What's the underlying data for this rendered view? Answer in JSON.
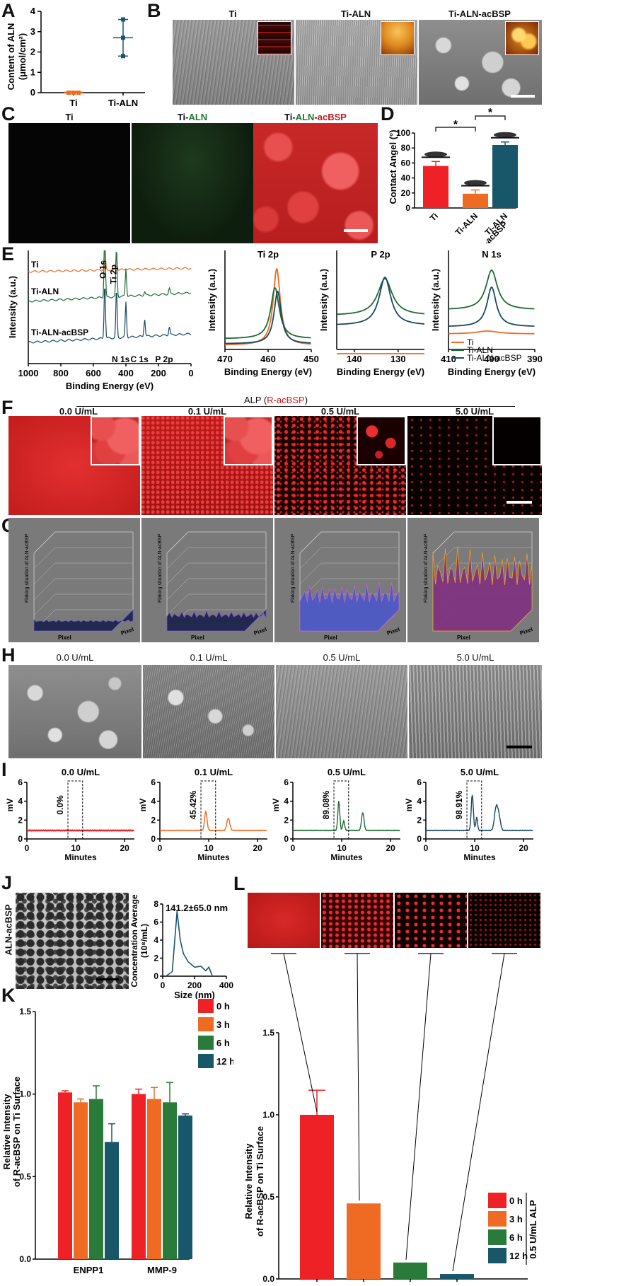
{
  "panels": {
    "A": "A",
    "B": "B",
    "C": "C",
    "D": "D",
    "E": "E",
    "F": "F",
    "G": "G",
    "H": "H",
    "I": "I",
    "J": "J",
    "K": "K",
    "L": "L"
  },
  "panelB": {
    "titles": [
      "Ti",
      "Ti-ALN",
      "Ti-ALN-acBSP"
    ]
  },
  "panelC": {
    "title1": "Ti",
    "title2_prefix": "Ti-",
    "title2_aln": "ALN",
    "title3_prefix": "Ti-",
    "title3_aln": "ALN",
    "title3_dash": "-",
    "title3_acbsp": "acBSP",
    "aln_color": "#1f7a2f",
    "acbsp_color": "#c01818"
  },
  "panelF": {
    "header_prefix": "ALP (",
    "header_red": "R-acBSP",
    "header_suffix": ")",
    "titles": [
      "0.0 U/mL",
      "0.1 U/mL",
      "0.5 U/mL",
      "5.0 U/mL"
    ]
  },
  "panelG": {
    "zlabel": "Flaking situation of ALN-acBSP",
    "xlabel": "Pixel",
    "ylabel": "Pixel"
  },
  "panelH": {
    "titles": [
      "0.0 U/mL",
      "0.1 U/mL",
      "0.5 U/mL",
      "5.0 U/mL"
    ]
  },
  "colors": {
    "orange": "#ef6a23",
    "green": "#1c6b31",
    "blue": "#17495f",
    "red": "#ee2226",
    "teal": "#18566a"
  },
  "chart_data": [
    {
      "id": "A",
      "type": "scatter",
      "ylabel": "Content of ALN\n(μmol/cm²)",
      "categories": [
        "Ti",
        "Ti-ALN"
      ],
      "yticks": [
        0,
        1,
        2,
        3,
        4
      ],
      "ylim": [
        0,
        4
      ],
      "series": [
        {
          "values": [
            0.02,
            2.7
          ],
          "points": [
            [
              0.0,
              0.0,
              0.0
            ],
            [
              3.6,
              2.7,
              1.8
            ]
          ],
          "err": [
            0.02,
            0.9
          ]
        }
      ]
    },
    {
      "id": "D",
      "type": "bar",
      "ylabel": "Contact Angel (°)",
      "categories": [
        "Ti",
        "Ti-ALN",
        "Ti-ALN\n-acBSP"
      ],
      "values": [
        56,
        19,
        84
      ],
      "errors": [
        6,
        5,
        4
      ],
      "ylim": [
        0,
        100
      ],
      "yticks": [
        0,
        20,
        40,
        60,
        80,
        100
      ],
      "colors": [
        "#ee2226",
        "#ef6a23",
        "#18566a"
      ],
      "annotations": [
        "*",
        "*"
      ]
    },
    {
      "id": "E1",
      "type": "line",
      "ylabel": "Intensity (a.u.)",
      "xlabel": "Binding Energy (eV)",
      "xticks": [
        1000,
        800,
        600,
        400,
        200,
        0
      ],
      "xlim": [
        1000,
        0
      ],
      "series": [
        {
          "name": "Ti"
        },
        {
          "name": "Ti-ALN"
        },
        {
          "name": "Ti-ALN-acBSP"
        }
      ],
      "annotations": [
        "O 1s",
        "Ti 2p",
        "N 1s",
        "C 1s",
        "P 2p"
      ]
    },
    {
      "id": "E2",
      "type": "line",
      "title": "Ti 2p",
      "ylabel": "Intensity (a.u.)",
      "xlabel": "Binding Energy (eV)",
      "xticks": [
        470,
        460,
        450
      ],
      "xlim": [
        470,
        450
      ],
      "peak": 458
    },
    {
      "id": "E3",
      "type": "line",
      "title": "P 2p",
      "ylabel": "Intensity (a.u.)",
      "xlabel": "Binding Energy (eV)",
      "xticks": [
        140,
        130
      ],
      "xlim": [
        144,
        124
      ],
      "peak": 133
    },
    {
      "id": "E4",
      "type": "line",
      "title": "N 1s",
      "ylabel": "Intensity (a.u.)",
      "xlabel": "Binding Energy (eV)",
      "xticks": [
        410,
        400,
        390
      ],
      "xlim": [
        410,
        390
      ],
      "peak": 400,
      "series": [
        {
          "name": "Ti"
        },
        {
          "name": "Ti-ALN"
        },
        {
          "name": "Ti-ALN-acBSP"
        }
      ]
    },
    {
      "id": "I",
      "type": "line",
      "ylabel": "mV",
      "xlabel": "Minutes",
      "xticks": [
        0,
        10,
        20
      ],
      "yticks": [
        0,
        2,
        4,
        6
      ],
      "xlim": [
        0,
        22
      ],
      "ylim": [
        0,
        6
      ],
      "panels": [
        {
          "title": "0.0 U/mL",
          "percent": "0.0%"
        },
        {
          "title": "0.1 U/mL",
          "percent": "45.42%"
        },
        {
          "title": "0.5 U/mL",
          "percent": "89.08%"
        },
        {
          "title": "5.0 U/mL",
          "percent": "98.91%"
        }
      ]
    },
    {
      "id": "J",
      "type": "line",
      "title": "141.2±65.0 nm",
      "ylabel": "Concentration Average\n(10⁸/mL)",
      "xlabel": "Size (nm)",
      "xticks": [
        0,
        200,
        400
      ],
      "xlim": [
        0,
        400
      ],
      "yticks": [
        0,
        2,
        4,
        6,
        8
      ],
      "ylim": [
        0,
        8
      ],
      "x": [
        20,
        60,
        90,
        110,
        130,
        160,
        200,
        240,
        270,
        290,
        310
      ],
      "y": [
        0,
        0.5,
        7.2,
        4.0,
        2.5,
        1.6,
        1.0,
        1.1,
        0.6,
        1.0,
        0.1
      ],
      "side_label": "ALN-acBSP"
    },
    {
      "id": "K",
      "type": "bar",
      "ylabel": "Relative Intensity\nof R-acBSP on Ti Surface",
      "categories": [
        "ENPP1",
        "MMP-9"
      ],
      "yticks": [
        0.0,
        0.5,
        1.0,
        1.5
      ],
      "ylim": [
        0,
        1.5
      ],
      "series": [
        {
          "name": "0 h",
          "values": [
            1.01,
            1.0
          ],
          "errors": [
            0.01,
            0.03
          ]
        },
        {
          "name": "3 h",
          "values": [
            0.95,
            0.97
          ],
          "errors": [
            0.02,
            0.07
          ]
        },
        {
          "name": "6 h",
          "values": [
            0.97,
            0.95
          ],
          "errors": [
            0.08,
            0.12
          ]
        },
        {
          "name": "12 h",
          "values": [
            0.71,
            0.87
          ],
          "errors": [
            0.11,
            0.01
          ]
        }
      ]
    },
    {
      "id": "L",
      "type": "bar",
      "ylabel": "Relative Intensity\nof R-acBSP on Ti Surface",
      "categories": [
        "0 h",
        "3 h",
        "6 h",
        "12 h"
      ],
      "values": [
        1.0,
        0.46,
        0.1,
        0.03
      ],
      "errors": [
        0.15,
        0.0,
        0.0,
        0.0
      ],
      "yticks": [
        0.0,
        0.5,
        1.0,
        1.5
      ],
      "ylim": [
        0,
        1.5
      ],
      "legend_side": "0.5 U/mL ALP",
      "series": [
        {
          "name": "0 h"
        },
        {
          "name": "3 h"
        },
        {
          "name": "6 h"
        },
        {
          "name": "12 h"
        }
      ]
    }
  ]
}
